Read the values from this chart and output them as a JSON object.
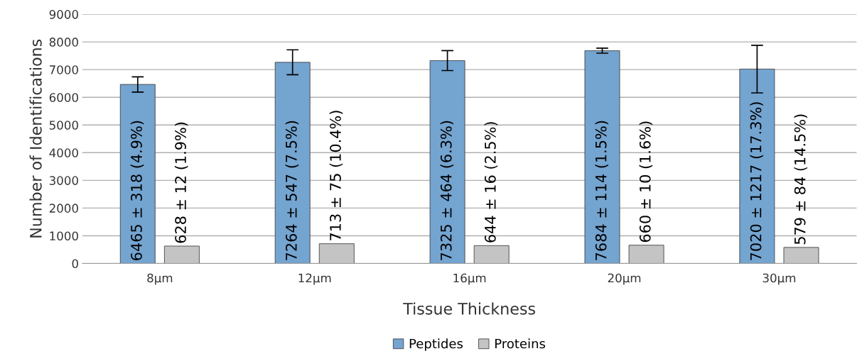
{
  "chart_data": {
    "type": "bar",
    "xlabel": "Tissue Thickness",
    "ylabel": "Number of Identifications",
    "categories": [
      "8µm",
      "12µm",
      "16µm",
      "20µm",
      "30µm"
    ],
    "series": [
      {
        "name": "Peptides",
        "color": "#74a4d0",
        "values": [
          6465,
          7264,
          7325,
          7684,
          7020
        ],
        "errors": [
          275,
          450,
          360,
          90,
          860
        ],
        "value_labels": [
          "6465 ± 318 (4.9%)",
          "7264 ± 547 (7.5%)",
          "7325 ± 464 (6.3%)",
          "7684 ± 114 (1.5%)",
          "7020 ± 1217 (17.3%)"
        ]
      },
      {
        "name": "Proteins",
        "color": "#c4c4c4",
        "values": [
          628,
          713,
          644,
          660,
          579
        ],
        "value_labels": [
          "628 ± 12 (1.9%)",
          "713 ± 75 (10.4%)",
          "644 ± 16 (2.5%)",
          "660 ± 10 (1.6%)",
          "579 ± 84 (14.5%)"
        ]
      }
    ],
    "ylim": [
      0,
      9000
    ],
    "yticks": [
      0,
      1000,
      2000,
      3000,
      4000,
      5000,
      6000,
      7000,
      8000,
      9000
    ],
    "grid": "y",
    "legend": "bottom"
  }
}
